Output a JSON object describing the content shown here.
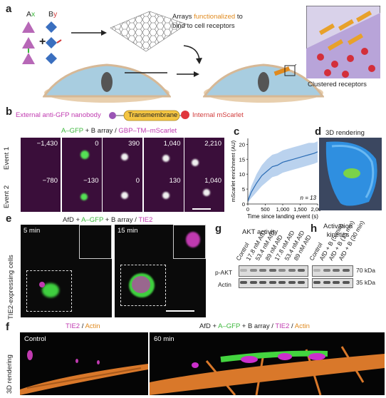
{
  "panel_a": {
    "label": "a",
    "ax": "A",
    "ax_sub": "x",
    "by": "B",
    "by_sub": "y",
    "plus": "+",
    "arrays_text_1": "Arrays ",
    "arrays_text_func": "functionalized",
    "arrays_text_2": " to",
    "arrays_text_3": "bind to cell receptors",
    "clustered": "Clustered receptors"
  },
  "panel_b": {
    "label": "b",
    "nanobody": "External anti-GFP nanobody",
    "transmembrane": "Transmembrane",
    "mscarlet": "Internal mScarlet",
    "title_agfp": "A–GFP",
    "title_mid": " + B array / ",
    "title_gbp": "GBP–TM–mScarlet",
    "event1": "Event 1",
    "event2": "Event 2",
    "event1_times": [
      "−1,430",
      "0",
      "390",
      "1,040",
      "2,210"
    ],
    "event2_times": [
      "−780",
      "−130",
      "0",
      "130",
      "1,040"
    ]
  },
  "panel_c": {
    "label": "c",
    "ylabel": "mScarlet enrichment (AU)",
    "xlabel": "Time since landing event (s)",
    "n_label": "n = 13",
    "yticks": [
      "0",
      "5",
      "10",
      "15",
      "20"
    ],
    "xticks": [
      "0",
      "500",
      "1,000",
      "1,500",
      "2,000"
    ]
  },
  "chart_data": {
    "type": "line",
    "title": "",
    "xlabel": "Time since landing event (s)",
    "ylabel": "mScarlet enrichment (AU)",
    "xlim": [
      0,
      2000
    ],
    "ylim": [
      0,
      22
    ],
    "series": [
      {
        "x": [
          0,
          100,
          250,
          400,
          550,
          700,
          850,
          1000,
          1150,
          1300,
          1450,
          1600,
          1750,
          1900,
          2000
        ],
        "values": [
          1,
          4,
          7,
          9.5,
          11,
          12.5,
          13,
          14,
          14.5,
          15,
          15.5,
          16,
          16.5,
          17,
          17.5
        ],
        "upper": [
          2,
          6,
          10,
          13,
          15,
          16.5,
          17,
          18,
          18.5,
          19,
          19.5,
          20,
          20.5,
          20.5,
          21
        ],
        "lower": [
          0.5,
          2,
          4,
          6,
          7.5,
          9,
          9.5,
          10.5,
          11,
          11.5,
          12,
          12.5,
          13,
          13.5,
          14
        ],
        "color": "#2c6db5"
      }
    ],
    "annotations": [
      "n = 13"
    ],
    "grid": false
  },
  "panel_d": {
    "label": "d",
    "title": "3D rendering"
  },
  "panel_e": {
    "label": "e",
    "title_afd": "AfD + ",
    "title_agfp": "A–GFP",
    "title_mid": " + B array / ",
    "title_tie2": "TIE2",
    "side_label": "TIE2-expressing cells",
    "time1": "5 min",
    "time2": "15 min"
  },
  "panel_g": {
    "label": "g",
    "title": "AKT activity",
    "lanes": [
      "Control",
      "17.8 nM AfD",
      "53.4 nM AfD",
      "89 nM AfD",
      "17.8 nM AfD",
      "53.4 nM AfD",
      "89 nM AfD"
    ],
    "row1": "p-AKT",
    "row2": "Actin"
  },
  "panel_h": {
    "label": "h",
    "title_1": "Activation",
    "title_2": "kinetics",
    "lanes": [
      "Control",
      "AfD + B (5 min)",
      "AfD + B (15 min)",
      "AfD + B (30 min)"
    ],
    "kda1": "70 kDa",
    "kda2": "35 kDa"
  },
  "panel_f": {
    "label": "f",
    "title_left_tie2": "TIE2",
    "title_left_sep": " / ",
    "title_left_actin": "Actin",
    "title_right_afd": "AfD + ",
    "title_right_agfp": "A–GFP",
    "title_right_mid": " + B array / ",
    "title_right_tie2": "TIE2",
    "title_right_sep": " / ",
    "title_right_actin": "Actin",
    "side_label": "3D rendering",
    "control": "Control",
    "min60": "60 min"
  }
}
